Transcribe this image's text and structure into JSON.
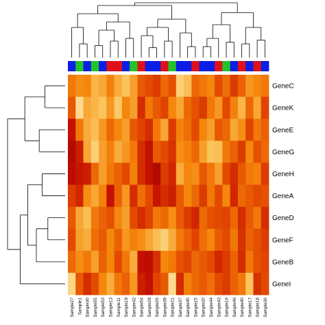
{
  "chart_data": {
    "type": "heatmap",
    "title": "",
    "samples": [
      "Sample27",
      "Sample1",
      "Sample30",
      "Sample55",
      "Sample53",
      "Sample13",
      "Sample11",
      "Sample19",
      "Sample42",
      "Sample54",
      "Sample29",
      "Sample26",
      "Sample39",
      "Sample21",
      "Sample37",
      "Sample45",
      "Sample15",
      "Sample20",
      "Sample44",
      "Sample43",
      "Sample16",
      "Sample46",
      "Sample40",
      "Sample17",
      "Sample18",
      "Sample36"
    ],
    "genes": [
      "GeneC",
      "GeneK",
      "GeneE",
      "GeneG",
      "GeneH",
      "GeneA",
      "GeneD",
      "GeneF",
      "GeneB",
      "GeneI"
    ],
    "column_groups": [
      "blue",
      "green",
      "blue",
      "green",
      "blue",
      "red",
      "red",
      "blue",
      "green",
      "red",
      "blue",
      "blue",
      "red",
      "green",
      "blue",
      "blue",
      "red",
      "blue",
      "blue",
      "red",
      "green",
      "blue",
      "red",
      "blue",
      "red",
      "blue"
    ],
    "group_colors": {
      "blue": "#0a1ee6",
      "green": "#22c42a",
      "red": "#e0101a"
    },
    "color_scale": [
      "#7f0000",
      "#c31000",
      "#e34a00",
      "#f5870c",
      "#fbc45c",
      "#fff0c2"
    ],
    "value_range": [
      0,
      1
    ],
    "values": [
      [
        0.55,
        0.62,
        0.6,
        0.75,
        0.7,
        0.58,
        0.72,
        0.8,
        0.68,
        0.45,
        0.4,
        0.35,
        0.5,
        0.42,
        0.85,
        0.78,
        0.5,
        0.55,
        0.6,
        0.4,
        0.52,
        0.35,
        0.48,
        0.65,
        0.6,
        0.55
      ],
      [
        0.45,
        0.9,
        0.7,
        0.75,
        0.8,
        0.65,
        0.82,
        0.6,
        0.68,
        0.3,
        0.55,
        0.45,
        0.38,
        0.6,
        0.7,
        0.5,
        0.42,
        0.35,
        0.55,
        0.65,
        0.4,
        0.58,
        0.75,
        0.5,
        0.7,
        0.38
      ],
      [
        0.2,
        0.55,
        0.72,
        0.78,
        0.65,
        0.5,
        0.6,
        0.68,
        0.45,
        0.38,
        0.3,
        0.55,
        0.7,
        0.35,
        0.58,
        0.52,
        0.4,
        0.6,
        0.68,
        0.45,
        0.5,
        0.7,
        0.62,
        0.38,
        0.55,
        0.48
      ],
      [
        0.15,
        0.25,
        0.7,
        0.85,
        0.68,
        0.58,
        0.72,
        0.65,
        0.55,
        0.3,
        0.2,
        0.45,
        0.4,
        0.32,
        0.62,
        0.58,
        0.5,
        0.68,
        0.8,
        0.78,
        0.55,
        0.48,
        0.35,
        0.6,
        0.42,
        0.5
      ],
      [
        0.18,
        0.22,
        0.25,
        0.5,
        0.68,
        0.55,
        0.48,
        0.4,
        0.58,
        0.3,
        0.2,
        0.15,
        0.35,
        0.28,
        0.72,
        0.6,
        0.62,
        0.45,
        0.55,
        0.68,
        0.4,
        0.3,
        0.45,
        0.55,
        0.58,
        0.35
      ],
      [
        0.35,
        0.28,
        0.62,
        0.7,
        0.58,
        0.2,
        0.48,
        0.65,
        0.3,
        0.52,
        0.4,
        0.22,
        0.3,
        0.25,
        0.45,
        0.6,
        0.5,
        0.35,
        0.55,
        0.4,
        0.6,
        0.28,
        0.5,
        0.45,
        0.4,
        0.42
      ],
      [
        0.45,
        0.7,
        0.78,
        0.55,
        0.48,
        0.42,
        0.6,
        0.68,
        0.4,
        0.3,
        0.38,
        0.55,
        0.5,
        0.62,
        0.45,
        0.35,
        0.28,
        0.5,
        0.42,
        0.4,
        0.38,
        0.5,
        0.3,
        0.45,
        0.55,
        0.3
      ],
      [
        0.4,
        0.68,
        0.72,
        0.52,
        0.45,
        0.6,
        0.48,
        0.65,
        0.58,
        0.62,
        0.7,
        0.78,
        0.85,
        0.72,
        0.55,
        0.48,
        0.38,
        0.52,
        0.6,
        0.45,
        0.4,
        0.55,
        0.32,
        0.48,
        0.42,
        0.35
      ],
      [
        0.5,
        0.62,
        0.55,
        0.68,
        0.48,
        0.6,
        0.4,
        0.55,
        0.72,
        0.2,
        0.18,
        0.32,
        0.6,
        0.55,
        0.42,
        0.38,
        0.5,
        0.45,
        0.4,
        0.28,
        0.35,
        0.48,
        0.3,
        0.55,
        0.42,
        0.38
      ],
      [
        0.88,
        0.45,
        0.3,
        0.4,
        0.6,
        0.72,
        0.55,
        0.48,
        0.65,
        0.25,
        0.2,
        0.38,
        0.45,
        0.9,
        0.3,
        0.58,
        0.5,
        0.45,
        0.52,
        0.4,
        0.35,
        0.48,
        0.55,
        0.8,
        0.32,
        0.4
      ]
    ]
  }
}
